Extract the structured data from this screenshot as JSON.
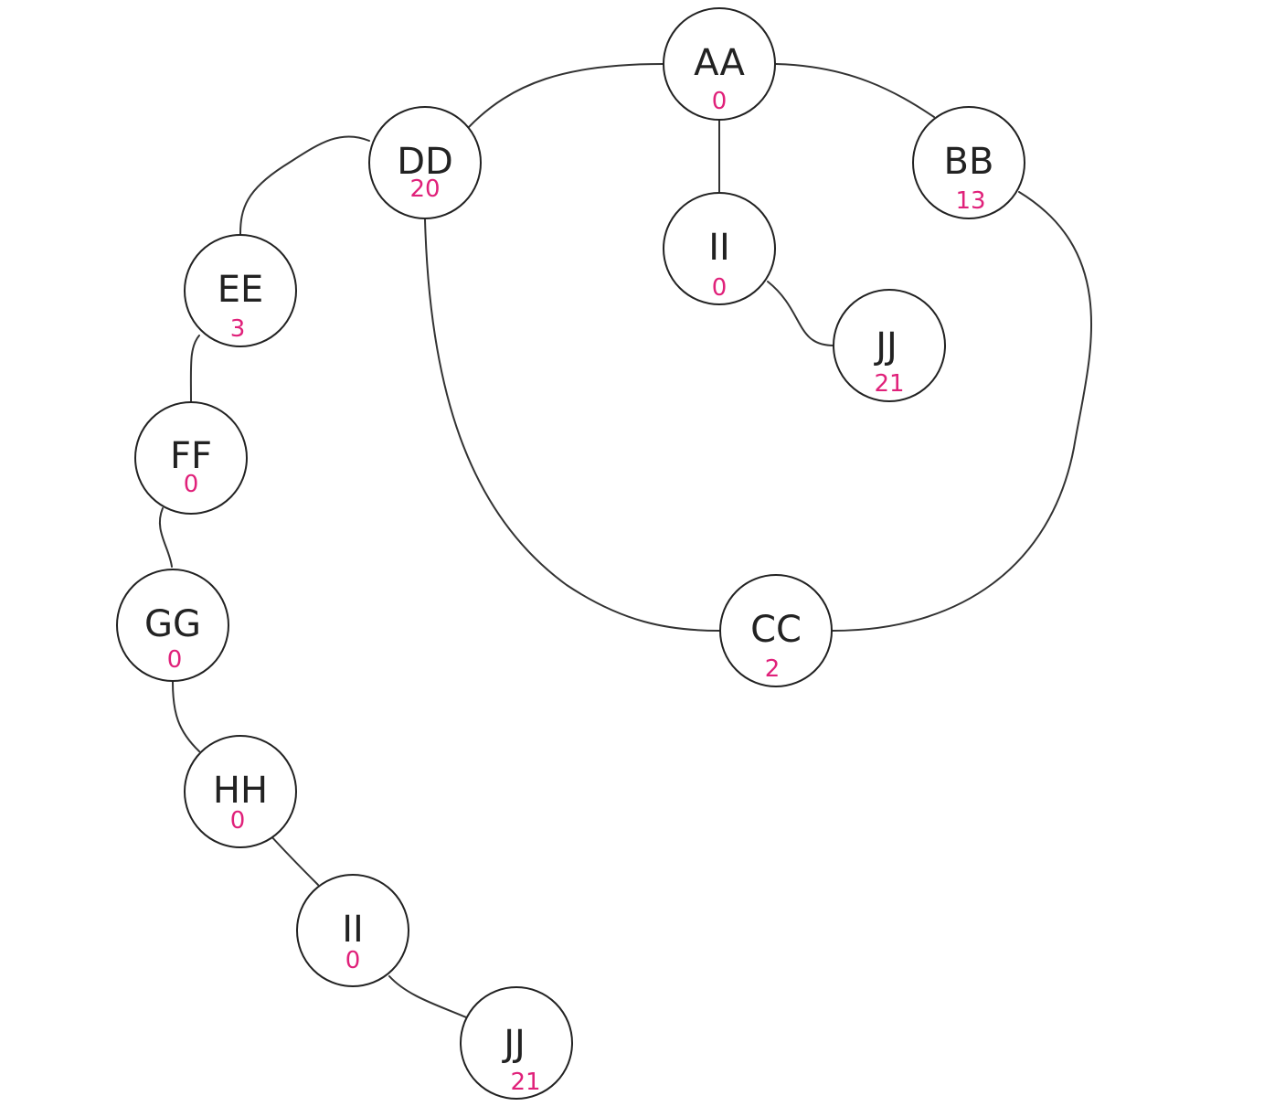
{
  "colors": {
    "edge": "#333333",
    "node_border": "#222222",
    "node_fill": "#ffffff",
    "label": "#222222",
    "value": "#e0217a"
  },
  "nodes": [
    {
      "id": "aa",
      "label": "AA",
      "value": "0"
    },
    {
      "id": "dd",
      "label": "DD",
      "value": "20"
    },
    {
      "id": "bb",
      "label": "BB",
      "value": "13"
    },
    {
      "id": "ii-upper",
      "label": "II",
      "value": "0"
    },
    {
      "id": "jj-upper",
      "label": "JJ",
      "value": "21"
    },
    {
      "id": "ee",
      "label": "EE",
      "value": "3"
    },
    {
      "id": "ff",
      "label": "FF",
      "value": "0"
    },
    {
      "id": "gg",
      "label": "GG",
      "value": "0"
    },
    {
      "id": "cc",
      "label": "CC",
      "value": "2"
    },
    {
      "id": "hh",
      "label": "HH",
      "value": "0"
    },
    {
      "id": "ii-lower",
      "label": "II",
      "value": "0"
    },
    {
      "id": "jj-lower",
      "label": "JJ",
      "value": "21"
    }
  ],
  "edges": [
    {
      "from": "aa",
      "to": "dd"
    },
    {
      "from": "aa",
      "to": "bb"
    },
    {
      "from": "aa",
      "to": "ii-upper"
    },
    {
      "from": "ii-upper",
      "to": "jj-upper"
    },
    {
      "from": "bb",
      "to": "cc"
    },
    {
      "from": "dd",
      "to": "cc"
    },
    {
      "from": "dd",
      "to": "ee"
    },
    {
      "from": "ee",
      "to": "ff"
    },
    {
      "from": "ff",
      "to": "gg"
    },
    {
      "from": "gg",
      "to": "hh"
    },
    {
      "from": "hh",
      "to": "ii-lower"
    },
    {
      "from": "ii-lower",
      "to": "jj-lower"
    }
  ]
}
